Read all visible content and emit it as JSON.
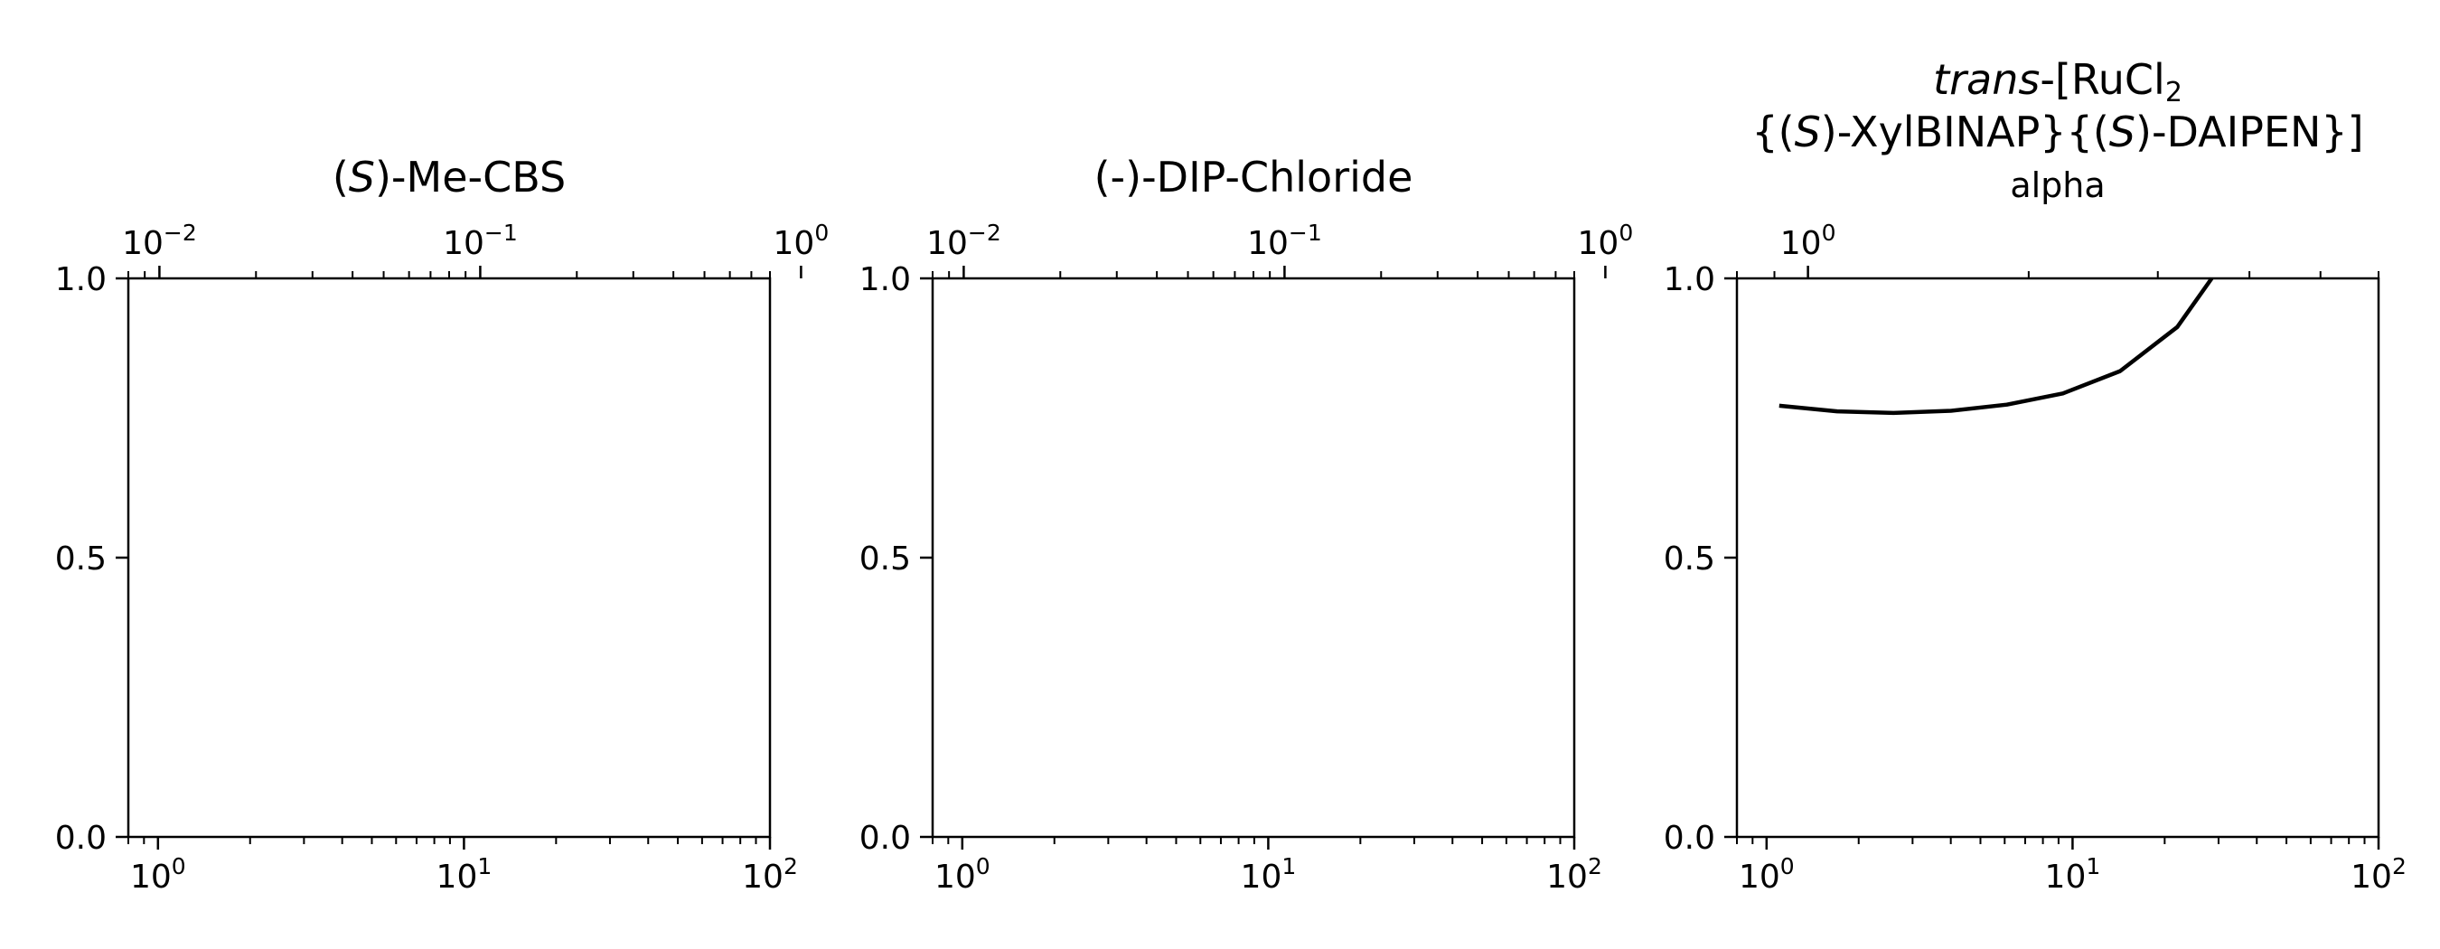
{
  "chart_data": [
    {
      "type": "line",
      "title": "(S)-Me-CBS",
      "title_parts": [
        {
          "text": "(",
          "italic": false
        },
        {
          "text": "S",
          "italic": true
        },
        {
          "text": ")-Me-CBS",
          "italic": false
        }
      ],
      "xscale": "log",
      "xlim": [
        0.8,
        100
      ],
      "xticks": [
        {
          "base": "10",
          "exp": "0"
        },
        {
          "base": "10",
          "exp": "1"
        },
        {
          "base": "10",
          "exp": "2"
        }
      ],
      "ylim": [
        0,
        1
      ],
      "yticks": [
        "0.0",
        "0.5",
        "1.0"
      ],
      "top_xscale": "log",
      "top_xlim": [
        0.008,
        0.8
      ],
      "top_xticks": [
        {
          "base": "10",
          "exp": "−2"
        },
        {
          "base": "10",
          "exp": "−1"
        },
        {
          "base": "10",
          "exp": "0"
        }
      ],
      "series": []
    },
    {
      "type": "line",
      "title": "(-)-DIP-Chloride",
      "title_parts": [
        {
          "text": "(-)-DIP-Chloride",
          "italic": false
        }
      ],
      "xscale": "log",
      "xlim": [
        0.8,
        100
      ],
      "xticks": [
        {
          "base": "10",
          "exp": "0"
        },
        {
          "base": "10",
          "exp": "1"
        },
        {
          "base": "10",
          "exp": "2"
        }
      ],
      "ylim": [
        0,
        1
      ],
      "yticks": [
        "0.0",
        "0.5",
        "1.0"
      ],
      "top_xscale": "log",
      "top_xlim": [
        0.008,
        0.8
      ],
      "top_xticks": [
        {
          "base": "10",
          "exp": "−2"
        },
        {
          "base": "10",
          "exp": "−1"
        },
        {
          "base": "10",
          "exp": "0"
        }
      ],
      "series": []
    },
    {
      "type": "line",
      "title_lines": [
        [
          {
            "text": "trans",
            "italic": true
          },
          {
            "text": "-[RuCl",
            "italic": false
          },
          {
            "text": "2",
            "italic": false,
            "sub": true
          }
        ],
        [
          {
            "text": "{(",
            "italic": false
          },
          {
            "text": "S",
            "italic": true
          },
          {
            "text": ")-XylBINAP}{(",
            "italic": false
          },
          {
            "text": "S",
            "italic": true
          },
          {
            "text": ")-DAIPEN}]",
            "italic": false
          }
        ]
      ],
      "top_xlabel": "alpha",
      "xscale": "log",
      "xlim": [
        0.8,
        100
      ],
      "xticks": [
        {
          "base": "10",
          "exp": "0"
        },
        {
          "base": "10",
          "exp": "1"
        },
        {
          "base": "10",
          "exp": "2"
        }
      ],
      "ylim": [
        0,
        1
      ],
      "yticks": [
        "0.0",
        "0.5",
        "1.0"
      ],
      "top_xscale": "log",
      "top_xlim": [
        0.8,
        6
      ],
      "top_xticks": [
        {
          "base": "10",
          "exp": "0"
        }
      ],
      "series": [
        {
          "color": "#000000",
          "x": [
            1.1,
            1.7,
            2.6,
            4.0,
            6.1,
            9.3,
            14.3,
            22.0,
            28.5
          ],
          "y": [
            0.772,
            0.762,
            0.759,
            0.763,
            0.774,
            0.794,
            0.834,
            0.913,
            1.0
          ]
        }
      ]
    }
  ]
}
